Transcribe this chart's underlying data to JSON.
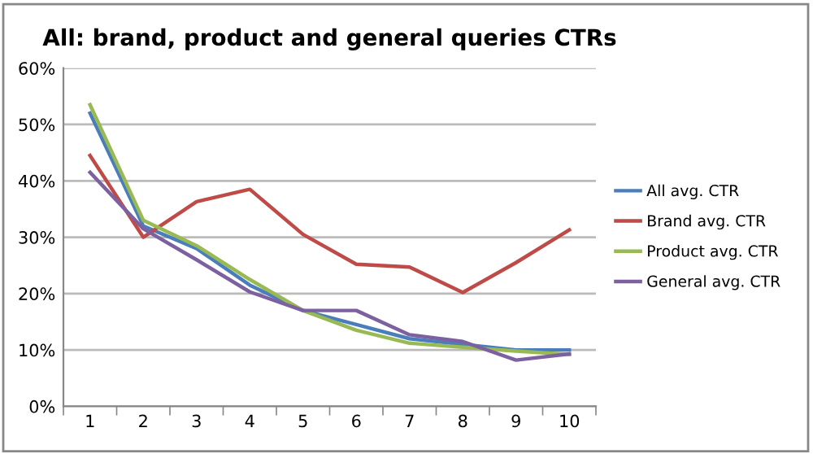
{
  "chart_data": {
    "type": "line",
    "title": "All: brand, product and general queries CTRs",
    "categories": [
      "1",
      "2",
      "3",
      "4",
      "5",
      "6",
      "7",
      "8",
      "9",
      "10"
    ],
    "series": [
      {
        "name": "All avg. CTR",
        "color": "#4a7ebb",
        "values": [
          52,
          32,
          28,
          21.5,
          17,
          14.5,
          12,
          11,
          10,
          10
        ]
      },
      {
        "name": "Brand avg. CTR",
        "color": "#be4b48",
        "values": [
          44.5,
          30,
          36.3,
          38.5,
          30.5,
          25.2,
          24.7,
          20.2,
          25.5,
          31.3
        ]
      },
      {
        "name": "Product avg. CTR",
        "color": "#98b954",
        "values": [
          53.5,
          33,
          28.5,
          22.5,
          17,
          13.5,
          11.2,
          10.5,
          9.8,
          9.2
        ]
      },
      {
        "name": "General avg. CTR",
        "color": "#7d60a0",
        "values": [
          41.5,
          31.5,
          26,
          20.3,
          17,
          17,
          12.7,
          11.5,
          8.2,
          9.3
        ]
      }
    ],
    "ylim": [
      0,
      60
    ],
    "yticks": [
      {
        "value": 0,
        "label": "0%"
      },
      {
        "value": 10,
        "label": "10%"
      },
      {
        "value": 20,
        "label": "20%"
      },
      {
        "value": 30,
        "label": "30%"
      },
      {
        "value": 40,
        "label": "40%"
      },
      {
        "value": 50,
        "label": "50%"
      },
      {
        "value": 60,
        "label": "60%"
      }
    ],
    "grid": "y",
    "legend": "right",
    "marker": "none",
    "line_style": "solid"
  }
}
